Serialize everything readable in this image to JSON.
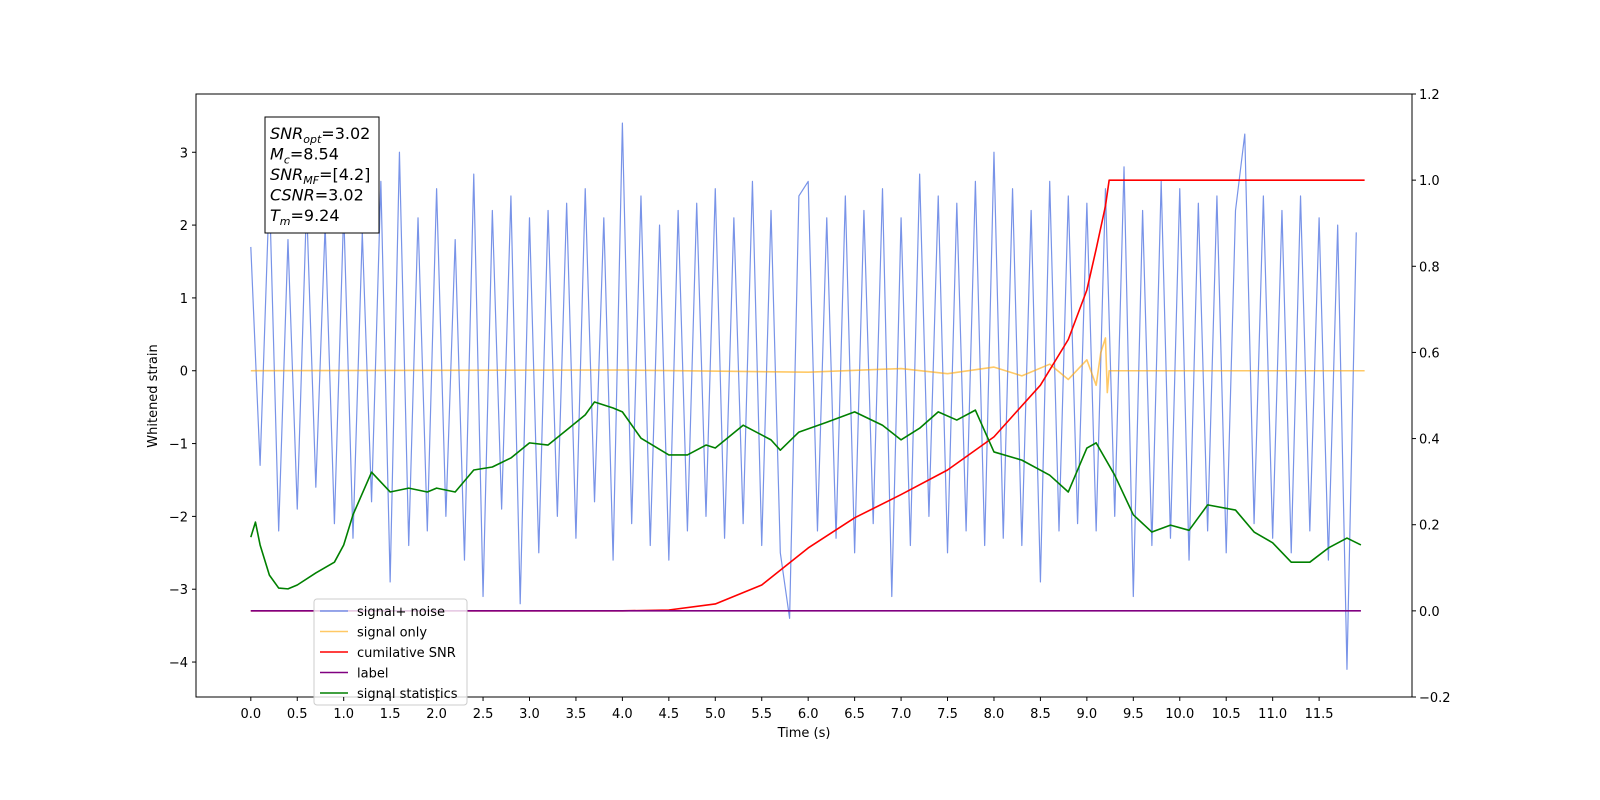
{
  "chart_data": {
    "type": "line",
    "xlabel": "Time (s)",
    "ylabel": "Whitened strain",
    "xlim": [
      -0.59,
      12.5
    ],
    "ylim": [
      -4.48,
      3.8
    ],
    "y2lim": [
      -0.2,
      1.2
    ],
    "xticks": [
      {
        "value": 0,
        "label": "0.0"
      },
      {
        "value": 0.5,
        "label": "0.5"
      },
      {
        "value": 1,
        "label": "1.0"
      },
      {
        "value": 1.5,
        "label": "1.5"
      },
      {
        "value": 2,
        "label": "2.0"
      },
      {
        "value": 2.5,
        "label": "2.5"
      },
      {
        "value": 3,
        "label": "3.0"
      },
      {
        "value": 3.5,
        "label": "3.5"
      },
      {
        "value": 4,
        "label": "4.0"
      },
      {
        "value": 4.5,
        "label": "4.5"
      },
      {
        "value": 5,
        "label": "5.0"
      },
      {
        "value": 5.5,
        "label": "5.5"
      },
      {
        "value": 6,
        "label": "6.0"
      },
      {
        "value": 6.5,
        "label": "6.5"
      },
      {
        "value": 7,
        "label": "7.0"
      },
      {
        "value": 7.5,
        "label": "7.5"
      },
      {
        "value": 8,
        "label": "8.0"
      },
      {
        "value": 8.5,
        "label": "8.5"
      },
      {
        "value": 9,
        "label": "9.0"
      },
      {
        "value": 9.5,
        "label": "9.5"
      },
      {
        "value": 10,
        "label": "10.0"
      },
      {
        "value": 10.5,
        "label": "10.5"
      },
      {
        "value": 11,
        "label": "11.0"
      },
      {
        "value": 11.5,
        "label": "11.5"
      }
    ],
    "yticks": [
      {
        "value": -4,
        "label": "−4"
      },
      {
        "value": -3,
        "label": "−3"
      },
      {
        "value": -2,
        "label": "−2"
      },
      {
        "value": -1,
        "label": "−1"
      },
      0,
      1,
      2,
      3
    ],
    "y2ticks": [
      {
        "value": -0.2,
        "label": "−0.2"
      },
      {
        "value": 0,
        "label": "0.0"
      },
      0.2,
      0.4,
      0.6,
      0.8,
      {
        "value": 1,
        "label": "1.0"
      },
      1.2
    ],
    "legend": "lower left",
    "annotation": [
      {
        "main": "SNR",
        "sub": "opt",
        "rest": "=3.02"
      },
      {
        "main": "M",
        "sub": "c",
        "rest": "=8.54"
      },
      {
        "main": "SNR",
        "sub": "MF",
        "rest": "=[4.2]"
      },
      {
        "main": "CSNR",
        "sub": null,
        "rest": "=3.02"
      },
      {
        "main": "T",
        "sub": "m",
        "rest": "=9.24"
      }
    ],
    "series": [
      {
        "name": "signal+ noise",
        "color": "#7893e8",
        "axis": "y",
        "x": [
          0,
          0.1,
          0.2,
          0.3,
          0.4,
          0.5,
          0.6,
          0.7,
          0.8,
          0.9,
          1,
          1.1,
          1.2,
          1.3,
          1.4,
          1.5,
          1.6,
          1.7,
          1.8,
          1.9,
          2,
          2.1,
          2.2,
          2.3,
          2.4,
          2.5,
          2.6,
          2.7,
          2.8,
          2.9,
          3,
          3.1,
          3.2,
          3.3,
          3.4,
          3.5,
          3.6,
          3.7,
          3.8,
          3.9,
          4,
          4.1,
          4.2,
          4.3,
          4.4,
          4.5,
          4.6,
          4.7,
          4.8,
          4.9,
          5,
          5.1,
          5.2,
          5.3,
          5.4,
          5.5,
          5.6,
          5.7,
          5.8,
          5.9,
          6,
          6.1,
          6.2,
          6.3,
          6.4,
          6.5,
          6.6,
          6.7,
          6.8,
          6.9,
          7,
          7.1,
          7.2,
          7.3,
          7.4,
          7.5,
          7.6,
          7.7,
          7.8,
          7.9,
          8,
          8.1,
          8.2,
          8.3,
          8.4,
          8.5,
          8.6,
          8.7,
          8.8,
          8.9,
          9,
          9.1,
          9.2,
          9.3,
          9.4,
          9.5,
          9.6,
          9.7,
          9.8,
          9.9,
          10,
          10.1,
          10.2,
          10.3,
          10.4,
          10.5,
          10.6,
          10.7,
          10.8,
          10.9,
          11,
          11.1,
          11.2,
          11.3,
          11.4,
          11.5,
          11.6,
          11.7,
          11.8,
          11.9
        ],
        "values": [
          1.7,
          -1.3,
          2.5,
          -2.2,
          1.8,
          -1.9,
          2.3,
          -1.6,
          2.0,
          -2.1,
          2.2,
          -2.3,
          1.9,
          -1.8,
          2.6,
          -2.9,
          3.0,
          -2.4,
          2.1,
          -2.2,
          2.5,
          -2.0,
          1.8,
          -2.6,
          2.7,
          -3.1,
          2.2,
          -1.9,
          2.4,
          -3.2,
          2.1,
          -2.5,
          2.2,
          -2.0,
          2.3,
          -2.3,
          2.5,
          -1.8,
          2.1,
          -2.6,
          3.4,
          -2.1,
          2.4,
          -2.4,
          2.0,
          -2.6,
          2.2,
          -2.2,
          2.3,
          -2.0,
          2.5,
          -2.3,
          2.1,
          -2.1,
          2.6,
          -2.4,
          2.2,
          -2.5,
          -3.4,
          2.4,
          2.6,
          -2.2,
          2.1,
          -2.3,
          2.4,
          -2.5,
          2.2,
          -2.1,
          2.5,
          -3.1,
          2.1,
          -2.4,
          2.7,
          -2.0,
          2.4,
          -2.5,
          2.3,
          -2.2,
          2.6,
          -2.4,
          3.0,
          -2.3,
          2.5,
          -2.4,
          2.2,
          -2.9,
          2.6,
          -2.2,
          2.4,
          -2.1,
          2.3,
          -2.2,
          2.5,
          -2.0,
          2.8,
          -3.1,
          2.2,
          -2.4,
          2.6,
          -2.3,
          2.5,
          -2.6,
          2.3,
          -2.2,
          2.4,
          -2.5,
          2.2,
          3.25,
          -2.1,
          2.4,
          -2.3,
          2.2,
          -2.5,
          2.4,
          -2.2,
          2.1,
          -2.6,
          2.0,
          -4.1,
          1.9
        ]
      },
      {
        "name": "signal only",
        "color": "#ffa500",
        "axis": "y",
        "x": [
          0,
          4,
          6,
          7,
          7.5,
          8,
          8.3,
          8.6,
          8.8,
          9,
          9.1,
          9.15,
          9.2,
          9.22,
          9.24,
          11.99
        ],
        "values": [
          0,
          0.01,
          -0.02,
          0.03,
          -0.04,
          0.05,
          -0.07,
          0.09,
          -0.12,
          0.15,
          -0.2,
          0.25,
          0.45,
          -0.3,
          0,
          0
        ]
      },
      {
        "name": "cumilative SNR",
        "color": "#ff0000",
        "axis": "y2",
        "x": [
          0,
          4,
          4.5,
          5,
          5.5,
          6,
          6.5,
          7,
          7.5,
          8,
          8.5,
          8.8,
          9,
          9.1,
          9.2,
          9.24,
          11.99
        ],
        "values": [
          0,
          0,
          0.002,
          0.016,
          0.06,
          0.146,
          0.216,
          0.27,
          0.327,
          0.404,
          0.524,
          0.63,
          0.745,
          0.84,
          0.94,
          1,
          1
        ]
      },
      {
        "name": "label",
        "color": "#800080",
        "axis": "y2",
        "x": [
          0,
          11.95
        ],
        "values": [
          0,
          0
        ]
      },
      {
        "name": "signal statistics",
        "color": "#008000",
        "axis": "y2",
        "x": [
          0,
          0.05,
          0.1,
          0.2,
          0.3,
          0.4,
          0.5,
          0.7,
          0.9,
          1,
          1.1,
          1.3,
          1.4,
          1.5,
          1.7,
          1.9,
          2,
          2.2,
          2.4,
          2.6,
          2.8,
          3,
          3.2,
          3.4,
          3.6,
          3.7,
          3.9,
          4,
          4.2,
          4.5,
          4.7,
          4.9,
          5,
          5.3,
          5.6,
          5.7,
          5.9,
          6.2,
          6.5,
          6.8,
          7,
          7.2,
          7.4,
          7.6,
          7.8,
          8,
          8.3,
          8.6,
          8.8,
          9,
          9.1,
          9.3,
          9.5,
          9.7,
          9.9,
          10.1,
          10.3,
          10.6,
          10.8,
          11,
          11.2,
          11.4,
          11.6,
          11.8,
          11.95
        ],
        "values": [
          0.171,
          0.206,
          0.153,
          0.083,
          0.053,
          0.051,
          0.06,
          0.088,
          0.113,
          0.153,
          0.223,
          0.322,
          0.299,
          0.276,
          0.285,
          0.276,
          0.285,
          0.276,
          0.327,
          0.334,
          0.355,
          0.39,
          0.385,
          0.42,
          0.455,
          0.485,
          0.471,
          0.462,
          0.401,
          0.362,
          0.362,
          0.385,
          0.378,
          0.431,
          0.397,
          0.373,
          0.415,
          0.438,
          0.462,
          0.431,
          0.397,
          0.424,
          0.462,
          0.443,
          0.466,
          0.369,
          0.35,
          0.315,
          0.276,
          0.378,
          0.39,
          0.315,
          0.223,
          0.183,
          0.199,
          0.187,
          0.246,
          0.234,
          0.183,
          0.158,
          0.113,
          0.113,
          0.146,
          0.169,
          0.153
        ]
      }
    ]
  }
}
